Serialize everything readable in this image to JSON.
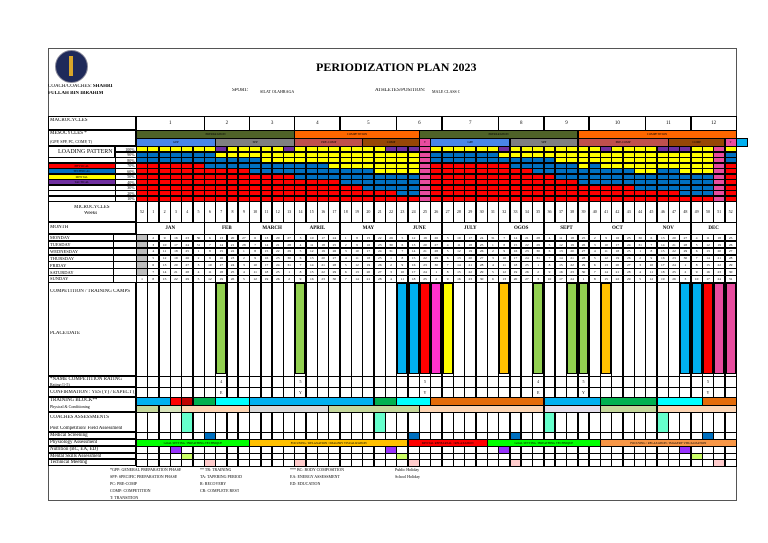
{
  "header": {
    "title": "PERIODIZATION PLAN 2023",
    "coach_label": "COACH/COACHES:",
    "coach_name": "SHAHRI",
    "coach_name2": "FULLAH BIN IBRAHIM",
    "sport_label": "SPORT:",
    "sport": "SILAT OLAHRAGA",
    "athlete_label": "ATHLETES/POSITION:",
    "athlete": "MALE CLASS C"
  },
  "labels": {
    "macrocycles": "MACROCYCLES",
    "mesocycles": "MESOCYCLES *",
    "mesocycles_sub": "(GPP, SPP, PC, COMP, T)",
    "loading": "LOADING PATTERN",
    "microcycles": "MICROCYCLES",
    "weeks": "Weeks",
    "month": "MONTH",
    "comp": "COMPETITION / TRAINING CAMPS",
    "place": "PLACE/DATE",
    "rating": "*NAME COMPETITION RATING",
    "rating_sub": "Rating (1-5)",
    "confirm": "CONFIRMATION : YES (Y) / EXPECT (E)",
    "block": "TRAINING BLOCK**",
    "block_sub": "Physical & Conditioning",
    "coaches": "COACHES ASSESSMENTS",
    "post": "Post Competition/ Field Assessment",
    "medical": "Medical Screening",
    "physio": "Physiology Assessment",
    "nutrition": "Nutrition (BC, EA, ED)",
    "mental": "Mental Skills Assessment",
    "technical": "Technical Meeting"
  },
  "percentages": [
    "100%",
    "90%",
    "80%",
    "70%",
    "60%",
    "50%",
    "40%",
    "30%",
    "20%",
    "10%"
  ],
  "loading_legend": [
    {
      "label": "PHYSICAL",
      "color": "#ff0000"
    },
    {
      "label": "TECHNICAL",
      "color": "#0070c0"
    },
    {
      "label": "MENTAL",
      "color": "#ffff00"
    },
    {
      "label": "TACTICAL",
      "color": "#7030a0"
    }
  ],
  "colors": {
    "physical": "#ff0000",
    "technical": "#0070c0",
    "mental": "#ffff00",
    "tactical": "#7030a0",
    "transition": "#e84c9e"
  },
  "macrocycles": [
    {
      "n": "1",
      "weeks": 6
    },
    {
      "n": "2",
      "weeks": 4
    },
    {
      "n": "3",
      "weeks": 4
    },
    {
      "n": "4",
      "weeks": 4
    },
    {
      "n": "5",
      "weeks": 5
    },
    {
      "n": "6",
      "weeks": 4
    },
    {
      "n": "7",
      "weeks": 5
    },
    {
      "n": "8",
      "weeks": 4
    },
    {
      "n": "9",
      "weeks": 4
    },
    {
      "n": "10",
      "weeks": 5
    },
    {
      "n": "11",
      "weeks": 4
    },
    {
      "n": "12",
      "weeks": 4
    }
  ],
  "phases": [
    {
      "label": "PREPARATION",
      "weeks": 14,
      "color": "#4f6228"
    },
    {
      "label": "COMPETITION",
      "weeks": 11,
      "color": "#ff6600"
    },
    {
      "label": "PREPARATION",
      "weeks": 14,
      "color": "#4f6228"
    },
    {
      "label": "COMPETITION",
      "weeks": 14,
      "color": "#ff6600"
    }
  ],
  "subphases": [
    {
      "label": "GPP",
      "weeks": 7,
      "color": "#4a86e8"
    },
    {
      "label": "SPP",
      "weeks": 7,
      "color": "#808080"
    },
    {
      "label": "PRE-COMP",
      "weeks": 6,
      "color": "#c0504d"
    },
    {
      "label": "COMP",
      "weeks": 5,
      "color": "#974706"
    },
    {
      "label": "T",
      "weeks": 1,
      "color": "#e84c9e"
    },
    {
      "label": "GPP",
      "weeks": 7,
      "color": "#4a86e8"
    },
    {
      "label": "SPP",
      "weeks": 6,
      "color": "#808080"
    },
    {
      "label": "PRE-COMP",
      "weeks": 8,
      "color": "#c0504d"
    },
    {
      "label": "COMP",
      "weeks": 5,
      "color": "#974706"
    },
    {
      "label": "T",
      "weeks": 1,
      "color": "#e84c9e"
    },
    {
      "label": "",
      "weeks": 1,
      "color": "#00b0f0"
    }
  ],
  "loading": [
    [
      7,
      2,
      0
    ],
    [
      7,
      2,
      0
    ],
    [
      7,
      2,
      0
    ],
    [
      7,
      2,
      0
    ],
    [
      7,
      2,
      0
    ],
    [
      7,
      2,
      0
    ],
    [
      6,
      3,
      0
    ],
    [
      6,
      2,
      1
    ],
    [
      6,
      2,
      0
    ],
    [
      6,
      2,
      0
    ],
    [
      5,
      3,
      0
    ],
    [
      5,
      2,
      0
    ],
    [
      5,
      2,
      0
    ],
    [
      5,
      2,
      1
    ],
    [
      4,
      3,
      0
    ],
    [
      4,
      3,
      0
    ],
    [
      4,
      3,
      0
    ],
    [
      4,
      2,
      0
    ],
    [
      3,
      3,
      0
    ],
    [
      3,
      3,
      0
    ],
    [
      2,
      4,
      0
    ],
    [
      2,
      3,
      0
    ],
    [
      2,
      3,
      1
    ],
    [
      1,
      4,
      1
    ],
    [
      1,
      4,
      1
    ],
    "T",
    [
      7,
      2,
      0
    ],
    [
      7,
      2,
      0
    ],
    [
      7,
      2,
      0
    ],
    [
      7,
      2,
      0
    ],
    [
      7,
      2,
      0
    ],
    [
      7,
      2,
      0
    ],
    [
      7,
      1,
      1
    ],
    [
      6,
      2,
      0
    ],
    [
      6,
      2,
      0
    ],
    [
      5,
      3,
      0
    ],
    [
      5,
      3,
      0
    ],
    [
      4,
      3,
      0
    ],
    [
      4,
      3,
      0
    ],
    [
      3,
      3,
      0
    ],
    [
      3,
      4,
      0
    ],
    [
      3,
      3,
      1
    ],
    [
      3,
      3,
      0
    ],
    [
      3,
      3,
      0
    ],
    [
      2,
      3,
      0
    ],
    [
      2,
      3,
      0
    ],
    [
      2,
      4,
      1
    ],
    [
      2,
      4,
      1
    ],
    [
      1,
      4,
      1
    ],
    [
      1,
      4,
      0
    ],
    [
      1,
      4,
      0
    ],
    "T",
    [
      7,
      2,
      0
    ]
  ],
  "weeks": [
    "52",
    "1",
    "2",
    "3",
    "4",
    "5",
    "6",
    "7",
    "8",
    "9",
    "10",
    "11",
    "12",
    "13",
    "14",
    "15",
    "16",
    "17",
    "18",
    "19",
    "20",
    "21",
    "22",
    "23",
    "24",
    "25",
    "26",
    "27",
    "28",
    "29",
    "30",
    "31",
    "32",
    "33",
    "34",
    "35",
    "36",
    "37",
    "38",
    "39",
    "40",
    "41",
    "42",
    "43",
    "44",
    "45",
    "46",
    "47",
    "48",
    "49",
    "50",
    "51",
    "52"
  ],
  "months": [
    {
      "label": "JAN",
      "weeks": 6
    },
    {
      "label": "FEB",
      "weeks": 4
    },
    {
      "label": "MARCH",
      "weeks": 4
    },
    {
      "label": "APRIL",
      "weeks": 4
    },
    {
      "label": "MAY",
      "weeks": 5
    },
    {
      "label": "JUNE",
      "weeks": 4
    },
    {
      "label": "JULY",
      "weeks": 5
    },
    {
      "label": "OGOS",
      "weeks": 4
    },
    {
      "label": "SEPT",
      "weeks": 4
    },
    {
      "label": "OCT",
      "weeks": 5
    },
    {
      "label": "NOV",
      "weeks": 4
    },
    {
      "label": "DEC",
      "weeks": 4
    }
  ],
  "days": [
    "MONDAY",
    "TUESDAY",
    "WEDNESDAY",
    "THURSDAY",
    "FRIDAY",
    "SATURDAY",
    "SUNDAY"
  ],
  "dates": [
    [
      "",
      "",
      "",
      "",
      "",
      "",
      "1"
    ],
    [
      "2",
      "3",
      "4",
      "5",
      "6",
      "7",
      "8"
    ],
    [
      "9",
      "10",
      "11",
      "12",
      "13",
      "14",
      "15"
    ],
    [
      "16",
      "17",
      "18",
      "19",
      "20",
      "21",
      "22"
    ],
    [
      "23",
      "24",
      "25",
      "26",
      "27",
      "28",
      "29"
    ],
    [
      "30",
      "31",
      "1",
      "2",
      "3",
      "4",
      "5"
    ],
    [
      "6",
      "7",
      "8",
      "9",
      "10",
      "11",
      "12"
    ],
    [
      "13",
      "14",
      "15",
      "16",
      "17",
      "18",
      "19"
    ],
    [
      "20",
      "21",
      "22",
      "23",
      "24",
      "25",
      "26"
    ],
    [
      "27",
      "28",
      "1",
      "2",
      "3",
      "4",
      "5"
    ],
    [
      "6",
      "7",
      "8",
      "9",
      "10",
      "11",
      "12"
    ],
    [
      "13",
      "14",
      "15",
      "16",
      "17",
      "18",
      "19"
    ],
    [
      "20",
      "21",
      "22",
      "23",
      "24",
      "25",
      "26"
    ],
    [
      "27",
      "28",
      "29",
      "30",
      "31",
      "1",
      "2"
    ],
    [
      "3",
      "4",
      "5",
      "6",
      "7",
      "8",
      "9"
    ],
    [
      "10",
      "11",
      "12",
      "13",
      "14",
      "15",
      "16"
    ],
    [
      "17",
      "18",
      "19",
      "20",
      "21",
      "22",
      "23"
    ],
    [
      "24",
      "25",
      "26",
      "27",
      "28",
      "29",
      "30"
    ],
    [
      "1",
      "2",
      "3",
      "4",
      "5",
      "6",
      "7"
    ],
    [
      "8",
      "9",
      "10",
      "11",
      "12",
      "13",
      "14"
    ],
    [
      "15",
      "16",
      "17",
      "18",
      "19",
      "20",
      "21"
    ],
    [
      "22",
      "23",
      "24",
      "25",
      "26",
      "27",
      "28"
    ],
    [
      "29",
      "30",
      "31",
      "1",
      "2",
      "3",
      "4"
    ],
    [
      "5",
      "6",
      "7",
      "8",
      "9",
      "10",
      "11"
    ],
    [
      "12",
      "13",
      "14",
      "15",
      "16",
      "17",
      "18"
    ],
    [
      "19",
      "20",
      "21",
      "22",
      "23",
      "24",
      "25"
    ],
    [
      "26",
      "27",
      "28",
      "29",
      "30",
      "1",
      "2"
    ],
    [
      "3",
      "4",
      "5",
      "6",
      "7",
      "8",
      "9"
    ],
    [
      "10",
      "11",
      "12",
      "13",
      "14",
      "15",
      "16"
    ],
    [
      "17",
      "18",
      "19",
      "20",
      "21",
      "22",
      "23"
    ],
    [
      "24",
      "25",
      "26",
      "27",
      "28",
      "29",
      "30"
    ],
    [
      "31",
      "1",
      "2",
      "3",
      "4",
      "5",
      "6"
    ],
    [
      "7",
      "8",
      "9",
      "10",
      "11",
      "12",
      "13"
    ],
    [
      "14",
      "15",
      "16",
      "17",
      "18",
      "19",
      "20"
    ],
    [
      "21",
      "22",
      "23",
      "24",
      "25",
      "26",
      "27"
    ],
    [
      "28",
      "29",
      "30",
      "31",
      "1",
      "2",
      "3"
    ],
    [
      "4",
      "5",
      "6",
      "7",
      "8",
      "9",
      "10"
    ],
    [
      "11",
      "12",
      "13",
      "14",
      "15",
      "16",
      "17"
    ],
    [
      "18",
      "19",
      "20",
      "21",
      "22",
      "23",
      "24"
    ],
    [
      "25",
      "26",
      "27",
      "28",
      "29",
      "30",
      "1"
    ],
    [
      "2",
      "3",
      "4",
      "5",
      "6",
      "7",
      "8"
    ],
    [
      "9",
      "10",
      "11",
      "12",
      "13",
      "14",
      "15"
    ],
    [
      "16",
      "17",
      "18",
      "19",
      "20",
      "21",
      "22"
    ],
    [
      "23",
      "24",
      "25",
      "26",
      "27",
      "28",
      "29"
    ],
    [
      "30",
      "31",
      "1",
      "2",
      "3",
      "4",
      "5"
    ],
    [
      "6",
      "7",
      "8",
      "9",
      "10",
      "11",
      "12"
    ],
    [
      "13",
      "14",
      "15",
      "16",
      "17",
      "18",
      "19"
    ],
    [
      "20",
      "21",
      "22",
      "23",
      "24",
      "25",
      "26"
    ],
    [
      "27",
      "28",
      "29",
      "30",
      "1",
      "2",
      "3"
    ],
    [
      "4",
      "5",
      "6",
      "7",
      "8",
      "9",
      "10"
    ],
    [
      "11",
      "12",
      "13",
      "14",
      "15",
      "16",
      "17"
    ],
    [
      "18",
      "19",
      "20",
      "21",
      "22",
      "23",
      "24"
    ],
    [
      "25",
      "26",
      "27",
      "28",
      "29",
      "30",
      "31"
    ]
  ],
  "competitions": [
    {
      "week": 7,
      "color": "#92d050"
    },
    {
      "week": 14,
      "color": "#92d050"
    },
    {
      "week": 23,
      "color": "#00b0f0"
    },
    {
      "week": 24,
      "color": "#00b0f0"
    },
    {
      "week": 25,
      "color": "#ff0000"
    },
    {
      "week": 26,
      "color": "#ff33cc"
    },
    {
      "week": 27,
      "color": "#ffff00"
    },
    {
      "week": 32,
      "color": "#ffc000"
    },
    {
      "week": 35,
      "color": "#92d050"
    },
    {
      "week": 38,
      "color": "#92d050"
    },
    {
      "week": 39,
      "color": "#92d050"
    },
    {
      "week": 41,
      "color": "#ffc000"
    },
    {
      "week": 48,
      "color": "#00b0f0"
    },
    {
      "week": 49,
      "color": "#00b0f0"
    },
    {
      "week": 50,
      "color": "#ff0000"
    },
    {
      "week": 51,
      "color": "#e84c9e"
    },
    {
      "week": 52,
      "color": "#e84c9e"
    }
  ],
  "ratings": [
    {
      "week": 7,
      "rating": "4",
      "confirm": "E"
    },
    {
      "week": 14,
      "rating": "5",
      "confirm": "Y"
    },
    {
      "week": 25,
      "rating": "5",
      "confirm": "Y"
    },
    {
      "week": 35,
      "rating": "4",
      "confirm": "E"
    },
    {
      "week": 39,
      "rating": "5",
      "confirm": "Y"
    },
    {
      "week": 50,
      "rating": "5",
      "confirm": "Y"
    }
  ],
  "block_row1": [
    {
      "weeks": 3,
      "color": "#00b0f0"
    },
    {
      "weeks": 1,
      "color": "#ff0000"
    },
    {
      "weeks": 1,
      "color": "#c00000"
    },
    {
      "weeks": 2,
      "color": "#00b050"
    },
    {
      "weeks": 3,
      "color": "#00ffff"
    },
    {
      "weeks": 11,
      "color": "#00b0f0"
    },
    {
      "weeks": 2,
      "color": "#00b050"
    },
    {
      "weeks": 3,
      "color": "#00ffff"
    },
    {
      "weeks": 10,
      "color": "#e46c0a"
    },
    {
      "weeks": 5,
      "color": "#00b0f0"
    },
    {
      "weeks": 5,
      "color": "#00b050"
    },
    {
      "weeks": 4,
      "color": "#00ffff"
    },
    {
      "weeks": 3,
      "color": "#e46c0a"
    }
  ],
  "block_row2": [
    {
      "weeks": 2,
      "color": "#c4d79b"
    },
    {
      "weeks": 2,
      "color": "#d8e4bc"
    },
    {
      "weeks": 6,
      "color": "#fcd5b4"
    },
    {
      "weeks": 7,
      "color": "#d9d9d9"
    },
    {
      "weeks": 8,
      "color": "#c4d79b"
    },
    {
      "weeks": 11,
      "color": "#fcd5b4"
    },
    {
      "weeks": 5,
      "color": "#e4dfec"
    },
    {
      "weeks": 5,
      "color": "#c4d79b"
    },
    {
      "weeks": 7,
      "color": "#fcd5b4"
    }
  ],
  "physiology": [
    {
      "label": "GOAL SETTING / BREATHING TECHNIQUE",
      "weeks": 10,
      "color": "#00ff00"
    },
    {
      "label": "FOCUSING / RELAXATION / IMAGERY VISUALIZATION",
      "weeks": 14,
      "color": "#ffc000"
    },
    {
      "label": "MENTAL REHEARSAL / RELAXATION",
      "weeks": 7,
      "color": "#ff0000"
    },
    {
      "label": "GOAL SETTING / BREATHING TECHNIQUE",
      "weeks": 10,
      "color": "#00ff00"
    },
    {
      "label": "FOCUSING / RELAXATION / IMAGERY VISUALIZATION",
      "weeks": 12,
      "color": "#f79646"
    }
  ],
  "assessments": {
    "post": {
      "weeks": [
        4,
        21,
        36,
        46
      ],
      "color": "#66ffcc"
    },
    "medical": {
      "weeks": [
        6,
        24,
        33,
        50
      ],
      "color": "#0070c0"
    },
    "nutrition": {
      "weeks": [
        3,
        22,
        32,
        48
      ],
      "color": "#9933ff"
    },
    "mental": {
      "weeks": [
        4,
        23,
        49
      ],
      "color": "#ccff66"
    },
    "technical": {
      "weeks": [
        6,
        14,
        24,
        33,
        51
      ],
      "color": "#ffcccc"
    }
  },
  "legend": {
    "col1": [
      "*GPP: GENERAL PREPARATION PHASE",
      "SPP: SPECIFIC PREPARATION PHASE",
      "PC: PRE-COMP",
      "COMP: COMPETITION",
      "T: TRANSITION"
    ],
    "col2": [
      "** TR: TRAINING",
      "TA: TAPERING PERIOD",
      "R: RECOVERY",
      "CR: COMPLETE REST"
    ],
    "col3": [
      "*** BC: BODY COMPOSITION",
      "EA: ENERGY ASSESSMENT",
      "ED: EDUCATION"
    ],
    "col4": [
      "Public Holiday",
      "School Holiday"
    ]
  }
}
